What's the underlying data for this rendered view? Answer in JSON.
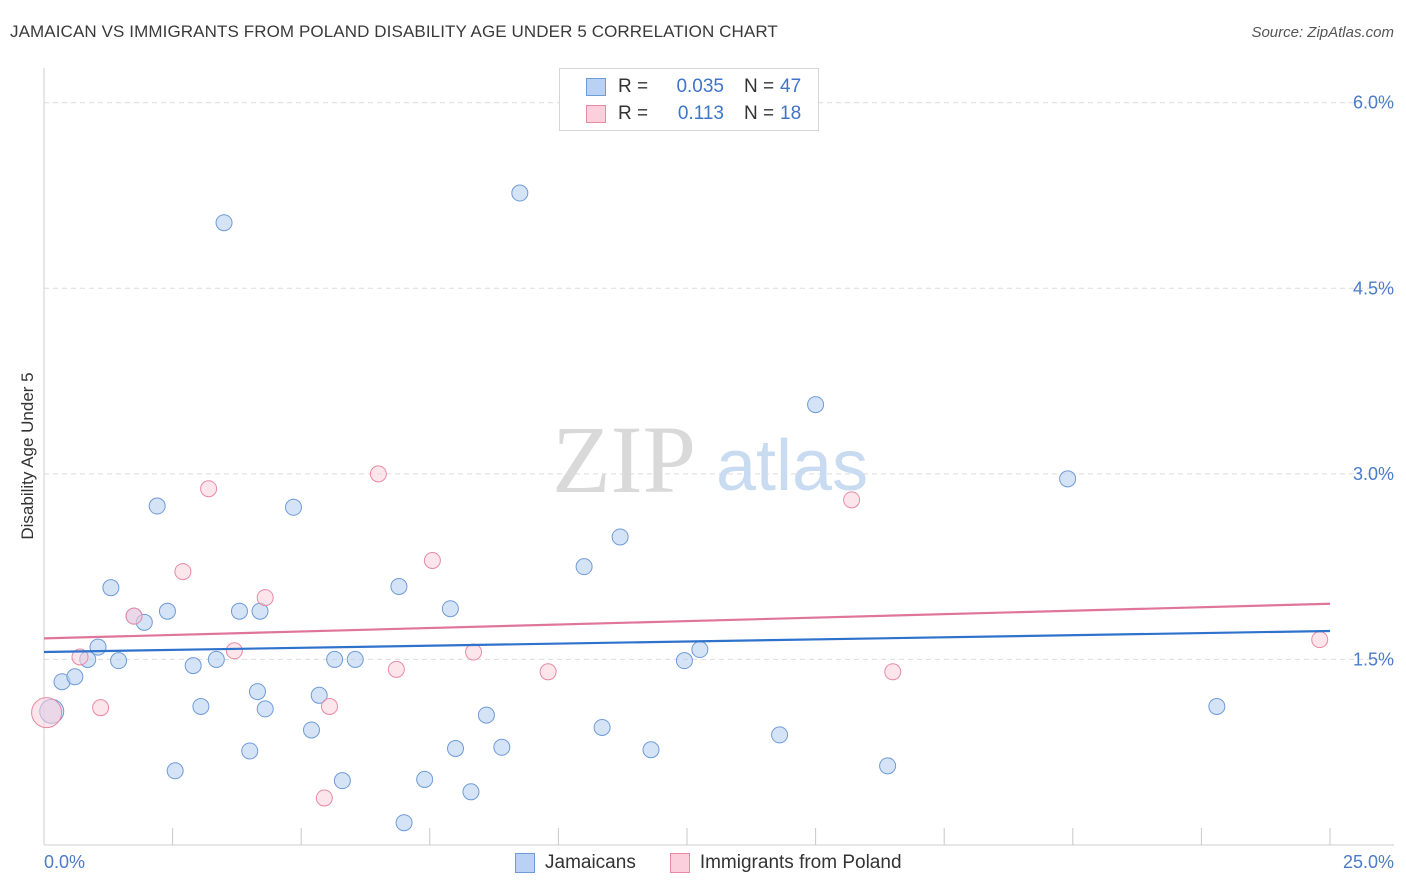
{
  "title": "JAMAICAN VS IMMIGRANTS FROM POLAND DISABILITY AGE UNDER 5 CORRELATION CHART",
  "source": "Source: ZipAtlas.com",
  "watermark": {
    "zip": "ZIP",
    "atlas": "atlas"
  },
  "legend": {
    "r_label": "R =",
    "n_label": "N =",
    "rows": [
      {
        "r": "0.035",
        "n": "47",
        "fill": "#b9d1f2",
        "stroke": "#6f9bd8"
      },
      {
        "r": "0.113",
        "n": "18",
        "fill": "#fbcfdc",
        "stroke": "#e88aa6"
      }
    ]
  },
  "bottom_legend": [
    {
      "label": "Jamaicans",
      "fill": "#b9d1f2",
      "stroke": "#6f9bd8"
    },
    {
      "label": "Immigrants from Poland",
      "fill": "#fbcfdc",
      "stroke": "#e88aa6"
    }
  ],
  "chart_data": {
    "type": "scatter",
    "title": "JAMAICAN VS IMMIGRANTS FROM POLAND DISABILITY AGE UNDER 5 CORRELATION CHART",
    "xlabel": "",
    "ylabel": "Disability Age Under 5",
    "xlim": [
      0,
      25
    ],
    "ylim": [
      0,
      6.2
    ],
    "x_tick_labels": {
      "min": "0.0%",
      "max": "25.0%"
    },
    "y_ticks": [
      {
        "value": 1.5,
        "label": "1.5%"
      },
      {
        "value": 3.0,
        "label": "3.0%"
      },
      {
        "value": 4.5,
        "label": "4.5%"
      },
      {
        "value": 6.0,
        "label": "6.0%"
      }
    ],
    "series": [
      {
        "name": "Jamaicans",
        "color": "#6f9bd8",
        "fill": "#b9d1f2",
        "line_color": "#2f72cc",
        "trend": [
          [
            0,
            1.56
          ],
          [
            25,
            1.73
          ]
        ],
        "points": [
          [
            0.15,
            1.08
          ],
          [
            0.35,
            1.32
          ],
          [
            0.6,
            1.36
          ],
          [
            0.85,
            1.5
          ],
          [
            1.05,
            1.6
          ],
          [
            1.3,
            2.08
          ],
          [
            1.45,
            1.49
          ],
          [
            1.75,
            1.85
          ],
          [
            1.95,
            1.8
          ],
          [
            2.2,
            2.74
          ],
          [
            2.4,
            1.89
          ],
          [
            2.55,
            0.6
          ],
          [
            2.9,
            1.45
          ],
          [
            3.05,
            1.12
          ],
          [
            3.35,
            1.5
          ],
          [
            3.5,
            5.03
          ],
          [
            3.8,
            1.89
          ],
          [
            4.0,
            0.76
          ],
          [
            4.15,
            1.24
          ],
          [
            4.2,
            1.89
          ],
          [
            4.3,
            1.1
          ],
          [
            4.85,
            2.73
          ],
          [
            5.2,
            0.93
          ],
          [
            5.35,
            1.21
          ],
          [
            5.65,
            1.5
          ],
          [
            5.8,
            0.52
          ],
          [
            6.05,
            1.5
          ],
          [
            6.9,
            2.09
          ],
          [
            7.0,
            0.18
          ],
          [
            7.4,
            0.53
          ],
          [
            7.9,
            1.91
          ],
          [
            8.0,
            0.78
          ],
          [
            8.3,
            0.43
          ],
          [
            8.6,
            1.05
          ],
          [
            8.9,
            0.79
          ],
          [
            9.25,
            5.27
          ],
          [
            10.5,
            2.25
          ],
          [
            10.85,
            0.95
          ],
          [
            11.2,
            2.49
          ],
          [
            11.8,
            0.77
          ],
          [
            12.45,
            1.49
          ],
          [
            12.75,
            1.58
          ],
          [
            14.3,
            0.89
          ],
          [
            16.4,
            0.64
          ],
          [
            19.9,
            2.96
          ],
          [
            22.8,
            1.12
          ],
          [
            15.0,
            3.56
          ]
        ]
      },
      {
        "name": "Immigrants from Poland",
        "color": "#e88aa6",
        "fill": "#fbcfdc",
        "line_color": "#e0759c",
        "trend": [
          [
            0,
            1.67
          ],
          [
            25,
            1.95
          ]
        ],
        "points": [
          [
            0.05,
            1.07
          ],
          [
            0.7,
            1.52
          ],
          [
            1.1,
            1.11
          ],
          [
            1.75,
            1.85
          ],
          [
            2.7,
            2.21
          ],
          [
            3.2,
            2.88
          ],
          [
            3.7,
            1.57
          ],
          [
            4.3,
            2.0
          ],
          [
            5.55,
            1.12
          ],
          [
            5.45,
            0.38
          ],
          [
            6.5,
            3.0
          ],
          [
            6.85,
            1.42
          ],
          [
            7.55,
            2.3
          ],
          [
            8.35,
            1.56
          ],
          [
            9.8,
            1.4
          ],
          [
            15.7,
            2.79
          ],
          [
            16.5,
            1.4
          ],
          [
            24.8,
            1.66
          ]
        ]
      }
    ]
  }
}
